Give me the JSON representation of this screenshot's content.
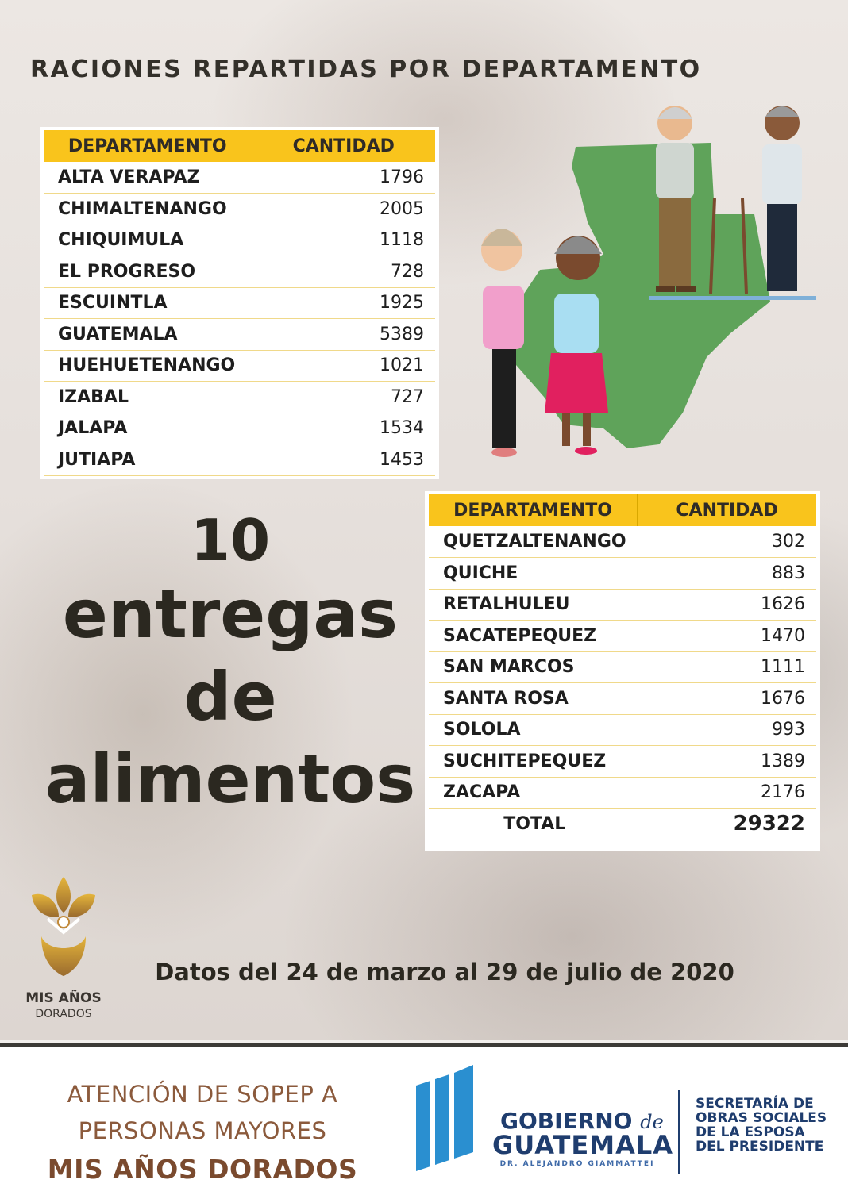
{
  "title": "RACIONES REPARTIDAS POR DEPARTAMENTO",
  "table_headers": {
    "departamento": "DEPARTAMENTO",
    "cantidad": "CANTIDAD"
  },
  "table1": [
    {
      "dept": "ALTA VERAPAZ",
      "qty": "1796"
    },
    {
      "dept": "CHIMALTENANGO",
      "qty": "2005"
    },
    {
      "dept": "CHIQUIMULA",
      "qty": "1118"
    },
    {
      "dept": "EL PROGRESO",
      "qty": "728"
    },
    {
      "dept": "ESCUINTLA",
      "qty": "1925"
    },
    {
      "dept": "GUATEMALA",
      "qty": "5389"
    },
    {
      "dept": "HUEHUETENANGO",
      "qty": "1021"
    },
    {
      "dept": "IZABAL",
      "qty": "727"
    },
    {
      "dept": "JALAPA",
      "qty": "1534"
    },
    {
      "dept": "JUTIAPA",
      "qty": "1453"
    }
  ],
  "table2": [
    {
      "dept": "QUETZALTENANGO",
      "qty": "302"
    },
    {
      "dept": "QUICHE",
      "qty": "883"
    },
    {
      "dept": "RETALHULEU",
      "qty": "1626"
    },
    {
      "dept": "SACATEPEQUEZ",
      "qty": "1470"
    },
    {
      "dept": "SAN MARCOS",
      "qty": "1111"
    },
    {
      "dept": "SANTA ROSA",
      "qty": "1676"
    },
    {
      "dept": "SOLOLA",
      "qty": "993"
    },
    {
      "dept": "SUCHITEPEQUEZ",
      "qty": "1389"
    },
    {
      "dept": "ZACAPA",
      "qty": "2176"
    }
  ],
  "total": {
    "label": "TOTAL",
    "value": "29322"
  },
  "headline": {
    "number": "10",
    "line2": "entregas",
    "line3": "de",
    "line4": "alimentos"
  },
  "dates": "Datos del 24 de marzo al 29 de julio de 2020",
  "logo_misanos": {
    "line1": "MIS AÑOS",
    "line2": "DORADOS"
  },
  "footer": {
    "line1": "ATENCIÓN DE SOPEP A",
    "line2": "PERSONAS MAYORES",
    "line3": "MIS AÑOS DORADOS",
    "gob_line1": "GOBIERNO",
    "gob_de": "de",
    "gob_line2": "GUATEMALA",
    "gob_line3": "DR. ALEJANDRO GIAMMATTEI",
    "sec_lines": [
      "SECRETARÍA DE",
      "OBRAS SOCIALES",
      "DE LA ESPOSA",
      "DEL PRESIDENTE"
    ]
  },
  "colors": {
    "header_yellow": "#f9c41c",
    "brown_text": "#7a4a2e",
    "gov_blue": "#1f3d6e",
    "map_green": "#5fa35a"
  }
}
